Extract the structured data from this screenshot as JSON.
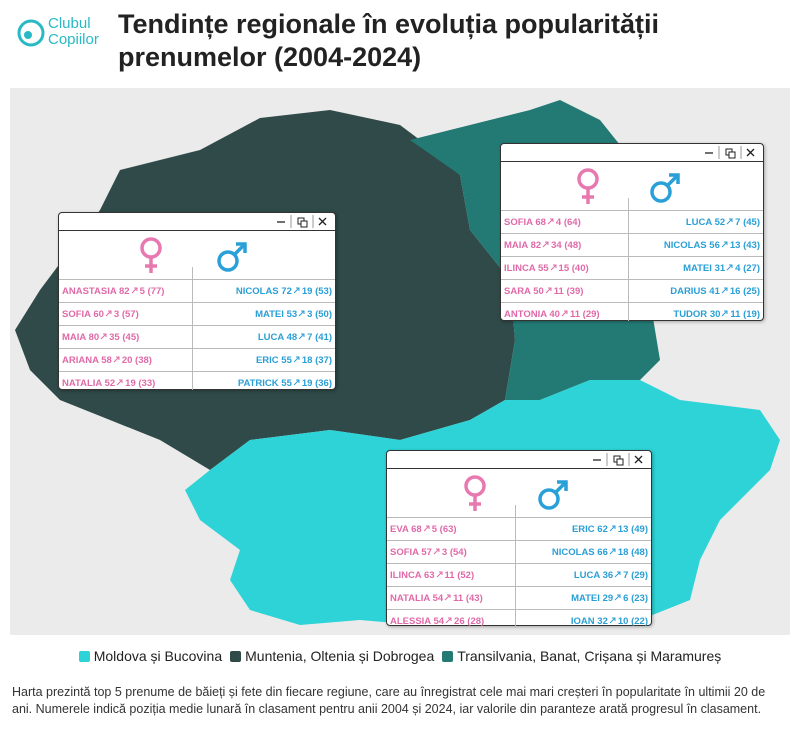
{
  "logo": [
    "Clubul",
    "Copiilor"
  ],
  "title": "Tendințe regionale în evoluția popularității prenumelor (2004-2024)",
  "legend": [
    {
      "label": "Moldova și Bucovina",
      "color": "#2dd3d6"
    },
    {
      "label": "Muntenia, Oltenia și Dobrogea",
      "color": "#2f4a48"
    },
    {
      "label": "Transilvania, Banat, Crișana și Maramureș",
      "color": "#237a74"
    }
  ],
  "regions": [
    {
      "legend": 2,
      "girls": [
        [
          "ANASTASIA",
          82,
          5,
          77
        ],
        [
          "SOFIA",
          60,
          3,
          57
        ],
        [
          "MAIA",
          80,
          35,
          45
        ],
        [
          "ARIANA",
          58,
          20,
          38
        ],
        [
          "NATALIA",
          52,
          19,
          33
        ]
      ],
      "boys": [
        [
          "NICOLAS",
          72,
          19,
          53
        ],
        [
          "MATEI",
          53,
          3,
          50
        ],
        [
          "LUCA",
          48,
          7,
          41
        ],
        [
          "ERIC",
          55,
          18,
          37
        ],
        [
          "PATRICK",
          55,
          19,
          36
        ]
      ]
    },
    {
      "legend": 0,
      "girls": [
        [
          "SOFIA",
          68,
          4,
          64
        ],
        [
          "MAIA",
          82,
          34,
          48
        ],
        [
          "ILINCA",
          55,
          15,
          40
        ],
        [
          "SARA",
          50,
          11,
          39
        ],
        [
          "ANTONIA",
          40,
          11,
          29
        ]
      ],
      "boys": [
        [
          "LUCA",
          52,
          7,
          45
        ],
        [
          "NICOLAS",
          56,
          13,
          43
        ],
        [
          "MATEI",
          31,
          4,
          27
        ],
        [
          "DARIUS",
          41,
          16,
          25
        ],
        [
          "TUDOR",
          30,
          11,
          19
        ]
      ]
    },
    {
      "legend": 1,
      "girls": [
        [
          "EVA",
          68,
          5,
          63
        ],
        [
          "SOFIA",
          57,
          3,
          54
        ],
        [
          "ILINCA",
          63,
          11,
          52
        ],
        [
          "NATALIA",
          54,
          11,
          43
        ],
        [
          "ALESSIA",
          54,
          26,
          28
        ]
      ],
      "boys": [
        [
          "ERIC",
          62,
          13,
          49
        ],
        [
          "NICOLAS",
          66,
          18,
          48
        ],
        [
          "LUCA",
          36,
          7,
          29
        ],
        [
          "MATEI",
          29,
          6,
          23
        ],
        [
          "IOAN",
          32,
          10,
          22
        ]
      ]
    }
  ],
  "note": "Harta prezintă top 5 prenume de băieți și fete din fiecare regiune, care au înregistrat cele mai mari creșteri în popularitate în ultimii 20 de ani. Numerele indică poziția medie lunară în clasament pentru anii 2004 și 2024, iar valorile din paranteze arată progresul în clasament."
}
